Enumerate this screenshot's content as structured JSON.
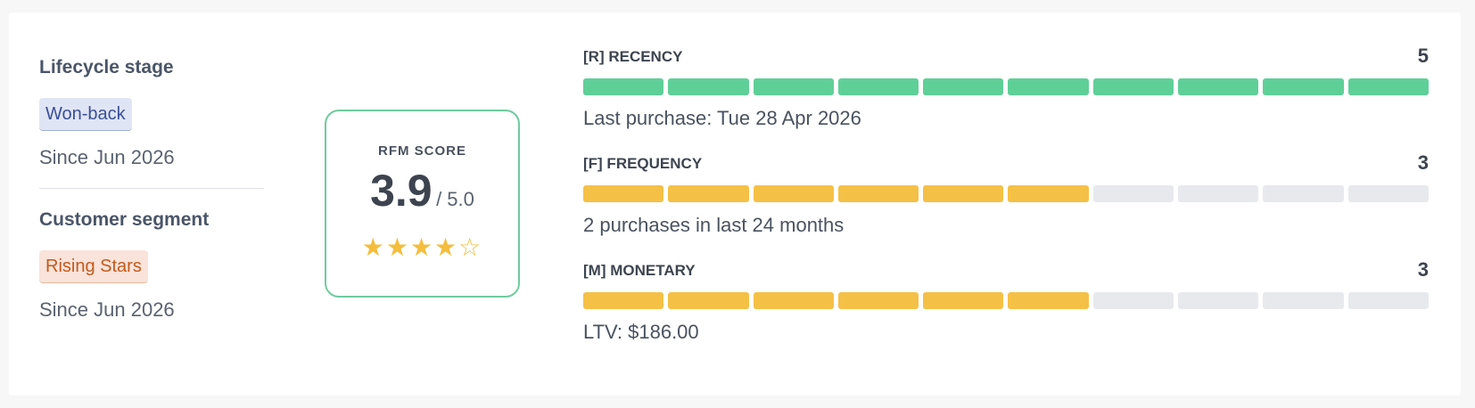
{
  "lifecycle": {
    "title": "Lifecycle stage",
    "tag": "Won-back",
    "since": "Since Jun 2026"
  },
  "segment": {
    "title": "Customer segment",
    "tag": "Rising Stars",
    "since": "Since Jun 2026"
  },
  "rfm": {
    "label": "RFM SCORE",
    "value": "3.9",
    "max": "/ 5.0",
    "stars_filled": 4,
    "stars_total": 5
  },
  "metrics": [
    {
      "name": "[R] RECENCY",
      "score": "5",
      "filled_segments": 10,
      "total_segments": 10,
      "color": "#5fcf98",
      "description": "Last purchase: Tue 28 Apr 2026"
    },
    {
      "name": "[F] FREQUENCY",
      "score": "3",
      "filled_segments": 6,
      "total_segments": 10,
      "color": "#f5c046",
      "description": "2 purchases in last 24 months"
    },
    {
      "name": "[M] MONETARY",
      "score": "3",
      "filled_segments": 6,
      "total_segments": 10,
      "color": "#f5c046",
      "description": "LTV: $186.00"
    }
  ],
  "colors": {
    "green": "#5fcf98",
    "yellow": "#f5c046",
    "empty": "#e8e9ed",
    "score_border": "#6fcb9f"
  }
}
